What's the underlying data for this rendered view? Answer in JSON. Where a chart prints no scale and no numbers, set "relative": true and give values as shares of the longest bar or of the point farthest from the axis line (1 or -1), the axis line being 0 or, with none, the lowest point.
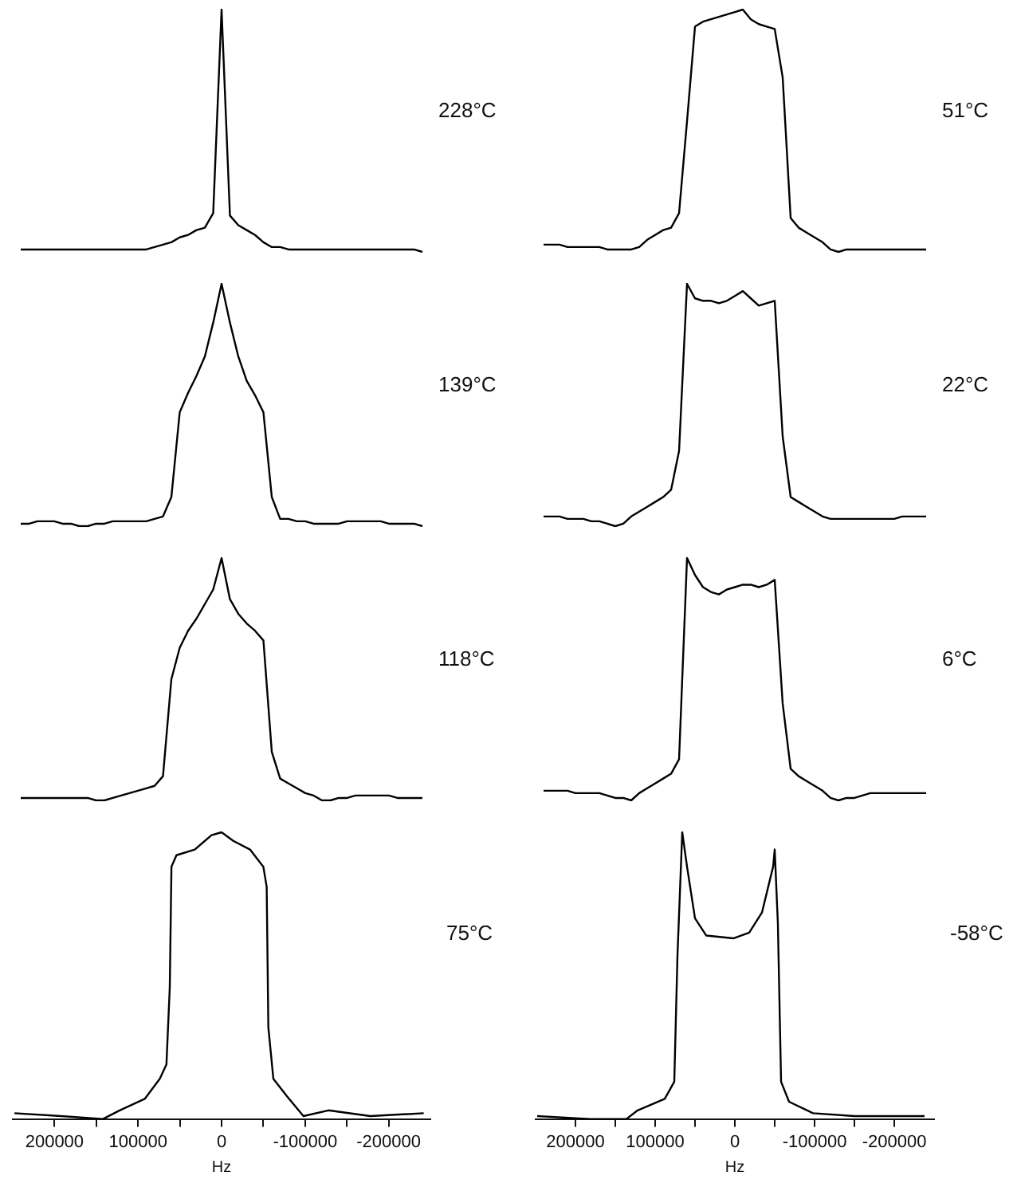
{
  "chart_data": [
    {
      "type": "line",
      "annotations": [
        "228°C"
      ],
      "relative": true,
      "tick_labels": false,
      "color": "#000000",
      "categories": [
        null,
        null,
        null,
        null,
        null,
        null,
        null,
        null,
        null,
        null,
        null,
        null,
        null,
        null,
        null,
        null,
        null,
        null,
        null,
        null,
        null,
        null,
        null,
        null,
        null,
        null,
        null,
        null,
        null,
        null,
        null,
        null,
        null,
        null,
        null,
        null,
        null,
        null,
        null,
        null,
        null,
        null,
        null,
        null,
        null,
        null,
        null,
        null,
        null
      ],
      "values": [
        0.01,
        0.01,
        0.01,
        0.01,
        0.01,
        0.01,
        0.01,
        0.01,
        0.01,
        0.01,
        0.01,
        0.01,
        0.01,
        0.01,
        0.01,
        0.01,
        0.02,
        0.03,
        0.04,
        0.06,
        0.07,
        0.09,
        0.1,
        0.16,
        1,
        0.15,
        0.11,
        0.09,
        0.07,
        0.04,
        0.02,
        0.02,
        0.01,
        0.01,
        0.01,
        0.01,
        0.01,
        0.01,
        0.01,
        0.01,
        0.01,
        0.01,
        0.01,
        0.01,
        0.01,
        0.01,
        0.01,
        0.01,
        0
      ]
    },
    {
      "type": "line",
      "annotations": [
        "51°C"
      ],
      "relative": true,
      "tick_labels": false,
      "color": "#000000",
      "categories": [
        null,
        null,
        null,
        null,
        null,
        null,
        null,
        null,
        null,
        null,
        null,
        null,
        null,
        null,
        null,
        null,
        null,
        null,
        null,
        null,
        null,
        null,
        null,
        null,
        null,
        null,
        null,
        null,
        null,
        null,
        null,
        null,
        null,
        null,
        null,
        null,
        null,
        null,
        null,
        null,
        null,
        null,
        null,
        null,
        null,
        null,
        null,
        null,
        null
      ],
      "values": [
        0.03,
        0.03,
        0.03,
        0.02,
        0.02,
        0.02,
        0.02,
        0.02,
        0.01,
        0.01,
        0.01,
        0.01,
        0.02,
        0.05,
        0.07,
        0.09,
        0.1,
        0.16,
        0.54,
        0.93,
        0.95,
        0.96,
        0.97,
        0.98,
        0.99,
        1,
        0.96,
        0.94,
        0.93,
        0.92,
        0.72,
        0.14,
        0.1,
        0.08,
        0.06,
        0.04,
        0.01,
        0,
        0.01,
        0.01,
        0.01,
        0.01,
        0.01,
        0.01,
        0.01,
        0.01,
        0.01,
        0.01,
        0.01
      ]
    },
    {
      "type": "line",
      "annotations": [
        "139°C"
      ],
      "relative": true,
      "tick_labels": false,
      "color": "#000000",
      "categories": [
        null,
        null,
        null,
        null,
        null,
        null,
        null,
        null,
        null,
        null,
        null,
        null,
        null,
        null,
        null,
        null,
        null,
        null,
        null,
        null,
        null,
        null,
        null,
        null,
        null,
        null,
        null,
        null,
        null,
        null,
        null,
        null,
        null,
        null,
        null,
        null,
        null,
        null,
        null,
        null,
        null,
        null,
        null,
        null,
        null,
        null,
        null,
        null,
        null
      ],
      "values": [
        0.01,
        0.01,
        0.02,
        0.02,
        0.02,
        0.01,
        0.01,
        0,
        0,
        0.01,
        0.01,
        0.02,
        0.02,
        0.02,
        0.02,
        0.02,
        0.03,
        0.04,
        0.12,
        0.47,
        0.55,
        0.62,
        0.7,
        0.84,
        1,
        0.84,
        0.7,
        0.6,
        0.54,
        0.47,
        0.12,
        0.03,
        0.03,
        0.02,
        0.02,
        0.01,
        0.01,
        0.01,
        0.01,
        0.02,
        0.02,
        0.02,
        0.02,
        0.02,
        0.01,
        0.01,
        0.01,
        0.01,
        0
      ]
    },
    {
      "type": "line",
      "annotations": [
        "22°C"
      ],
      "relative": true,
      "tick_labels": false,
      "color": "#000000",
      "categories": [
        null,
        null,
        null,
        null,
        null,
        null,
        null,
        null,
        null,
        null,
        null,
        null,
        null,
        null,
        null,
        null,
        null,
        null,
        null,
        null,
        null,
        null,
        null,
        null,
        null,
        null,
        null,
        null,
        null,
        null,
        null,
        null,
        null,
        null,
        null,
        null,
        null,
        null,
        null,
        null,
        null,
        null,
        null,
        null,
        null,
        null,
        null,
        null,
        null
      ],
      "values": [
        0.04,
        0.04,
        0.04,
        0.03,
        0.03,
        0.03,
        0.02,
        0.02,
        0.01,
        0,
        0.01,
        0.04,
        0.06,
        0.08,
        0.1,
        0.12,
        0.15,
        0.31,
        1,
        0.94,
        0.93,
        0.93,
        0.92,
        0.93,
        0.95,
        0.97,
        0.94,
        0.91,
        0.92,
        0.93,
        0.37,
        0.12,
        0.1,
        0.08,
        0.06,
        0.04,
        0.03,
        0.03,
        0.03,
        0.03,
        0.03,
        0.03,
        0.03,
        0.03,
        0.03,
        0.04,
        0.04,
        0.04,
        0.04
      ]
    },
    {
      "type": "line",
      "annotations": [
        "118°C"
      ],
      "relative": true,
      "tick_labels": false,
      "color": "#000000",
      "categories": [
        null,
        null,
        null,
        null,
        null,
        null,
        null,
        null,
        null,
        null,
        null,
        null,
        null,
        null,
        null,
        null,
        null,
        null,
        null,
        null,
        null,
        null,
        null,
        null,
        null,
        null,
        null,
        null,
        null,
        null,
        null,
        null,
        null,
        null,
        null,
        null,
        null,
        null,
        null,
        null,
        null,
        null,
        null,
        null,
        null,
        null,
        null,
        null,
        null
      ],
      "values": [
        0.01,
        0.01,
        0.01,
        0.01,
        0.01,
        0.01,
        0.01,
        0.01,
        0.01,
        0,
        0,
        0.01,
        0.02,
        0.03,
        0.04,
        0.05,
        0.06,
        0.1,
        0.5,
        0.63,
        0.7,
        0.75,
        0.81,
        0.87,
        1,
        0.83,
        0.77,
        0.73,
        0.7,
        0.66,
        0.2,
        0.09,
        0.07,
        0.05,
        0.03,
        0.02,
        0,
        0,
        0.01,
        0.01,
        0.02,
        0.02,
        0.02,
        0.02,
        0.02,
        0.01,
        0.01,
        0.01,
        0.01
      ]
    },
    {
      "type": "line",
      "annotations": [
        "6°C"
      ],
      "relative": true,
      "tick_labels": false,
      "color": "#000000",
      "categories": [
        null,
        null,
        null,
        null,
        null,
        null,
        null,
        null,
        null,
        null,
        null,
        null,
        null,
        null,
        null,
        null,
        null,
        null,
        null,
        null,
        null,
        null,
        null,
        null,
        null,
        null,
        null,
        null,
        null,
        null,
        null,
        null,
        null,
        null,
        null,
        null,
        null,
        null,
        null,
        null,
        null,
        null,
        null,
        null,
        null,
        null,
        null,
        null,
        null
      ],
      "values": [
        0.04,
        0.04,
        0.04,
        0.04,
        0.03,
        0.03,
        0.03,
        0.03,
        0.02,
        0.01,
        0.01,
        0,
        0.03,
        0.05,
        0.07,
        0.09,
        0.11,
        0.17,
        1,
        0.93,
        0.88,
        0.86,
        0.85,
        0.87,
        0.88,
        0.89,
        0.89,
        0.88,
        0.89,
        0.91,
        0.4,
        0.13,
        0.1,
        0.08,
        0.06,
        0.04,
        0.01,
        0,
        0.01,
        0.01,
        0.02,
        0.03,
        0.03,
        0.03,
        0.03,
        0.03,
        0.03,
        0.03,
        0.03
      ]
    },
    {
      "type": "line",
      "annotations": [
        "75°C"
      ],
      "xlabel": "Hz",
      "relative": true,
      "xlim": [
        250000,
        -250000
      ],
      "xticks": [
        200000,
        {
          "value": 150000,
          "label": null
        },
        100000,
        {
          "value": 50000,
          "label": null
        },
        0,
        {
          "value": -50000,
          "label": null
        },
        -100000,
        {
          "value": -150000,
          "label": null
        },
        -200000
      ],
      "tick_labels": "x",
      "color": "#000000",
      "x": [
        248000,
        192000,
        142000,
        122000,
        92000,
        74000,
        66000,
        62000,
        60000,
        54000,
        32000,
        12000,
        0,
        -14000,
        -34000,
        -50000,
        -54000,
        -56000,
        -62000,
        -78000,
        -98000,
        -128000,
        -178000,
        -242000
      ],
      "values": [
        0.02,
        0.01,
        0,
        0.03,
        0.07,
        0.14,
        0.19,
        0.46,
        0.88,
        0.92,
        0.94,
        0.99,
        1,
        0.97,
        0.94,
        0.88,
        0.81,
        0.32,
        0.14,
        0.08,
        0.01,
        0.03,
        0.01,
        0.02
      ]
    },
    {
      "type": "line",
      "annotations": [
        "-58°C"
      ],
      "xlabel": "Hz",
      "relative": true,
      "xlim": [
        250000,
        -250000
      ],
      "xticks": [
        200000,
        {
          "value": 150000,
          "label": null
        },
        100000,
        {
          "value": 50000,
          "label": null
        },
        0,
        {
          "value": -50000,
          "label": null
        },
        -100000,
        {
          "value": -150000,
          "label": null
        },
        -200000
      ],
      "tick_labels": "x",
      "color": "#000000",
      "x": [
        248000,
        182000,
        136000,
        122000,
        88000,
        76000,
        72000,
        66000,
        60000,
        50000,
        36000,
        2000,
        -18000,
        -34000,
        -48000,
        -50000,
        -54000,
        -58000,
        -68000,
        -98000,
        -150000,
        -238000
      ],
      "values": [
        0.01,
        0,
        0,
        0.03,
        0.07,
        0.13,
        0.57,
        1,
        0.88,
        0.7,
        0.64,
        0.63,
        0.65,
        0.72,
        0.88,
        0.94,
        0.68,
        0.13,
        0.06,
        0.02,
        0.01,
        0.01
      ]
    }
  ]
}
